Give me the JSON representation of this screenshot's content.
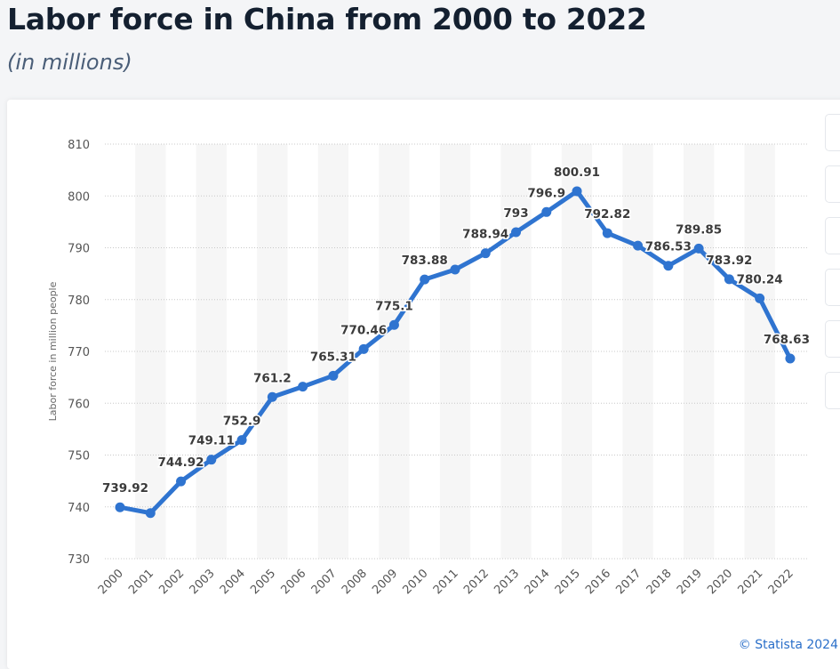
{
  "header": {
    "title": "Labor force in China from 2000 to 2022",
    "subtitle": "(in millions)"
  },
  "credit": "© Statista 2024",
  "colors": {
    "line": "#2f74d0",
    "gridline": "#c8c8c8",
    "band": "#f6f6f6"
  },
  "chart_data": {
    "type": "line",
    "title": "Labor force in China from 2000 to 2022",
    "subtitle": "(in millions)",
    "xlabel": "",
    "ylabel": "Labor force in million people",
    "categories": [
      "2000",
      "2001",
      "2002",
      "2003",
      "2004",
      "2005",
      "2006",
      "2007",
      "2008",
      "2009",
      "2010",
      "2011",
      "2012",
      "2013",
      "2014",
      "2015",
      "2016",
      "2017",
      "2018",
      "2019",
      "2020",
      "2021",
      "2022"
    ],
    "values": [
      739.92,
      738.8,
      744.92,
      749.11,
      752.9,
      761.2,
      763.2,
      765.31,
      770.46,
      775.1,
      783.88,
      785.8,
      788.94,
      793,
      796.9,
      800.91,
      792.82,
      790.4,
      786.53,
      789.85,
      783.92,
      780.24,
      768.63
    ],
    "point_labels": [
      "739.92",
      "",
      "744.92",
      "749.11",
      "752.9",
      "761.2",
      "",
      "765.31",
      "770.46",
      "775.1",
      "783.88",
      "",
      "788.94",
      "793",
      "796.9",
      "800.91",
      "792.82",
      "",
      "786.53",
      "789.85",
      "783.92",
      "780.24",
      "768.63"
    ],
    "ylim": [
      730,
      810
    ],
    "yticks": [
      730,
      740,
      750,
      760,
      770,
      780,
      790,
      800,
      810
    ],
    "grid": true,
    "legend": "none"
  }
}
